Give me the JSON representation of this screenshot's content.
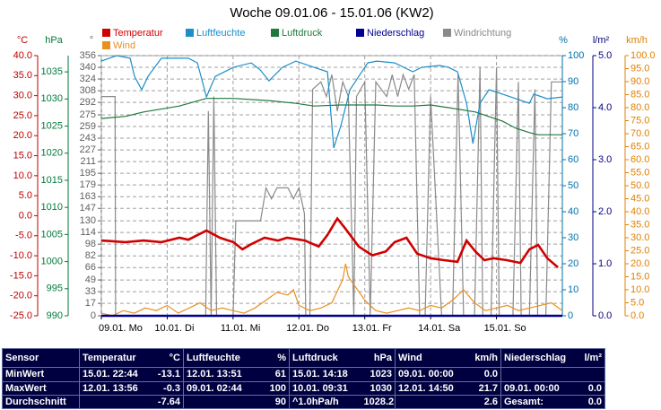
{
  "chart_data": {
    "type": "line",
    "title": "Woche 09.01.06 - 15.01.06 (KW2)",
    "grid": true,
    "xlim": [
      0,
      168
    ],
    "xticks": [
      {
        "value": 0,
        "label": "09.01. Mo"
      },
      {
        "value": 24,
        "label": "10.01. Di"
      },
      {
        "value": 48,
        "label": "11.01. Mi"
      },
      {
        "value": 72,
        "label": "12.01. Do"
      },
      {
        "value": 96,
        "label": "13.01. Fr"
      },
      {
        "value": 120,
        "label": "14.01. Sa"
      },
      {
        "value": 144,
        "label": "15.01. So"
      }
    ],
    "axes": [
      {
        "label": "°C",
        "color": "#c00000",
        "lim": [
          -25,
          40
        ],
        "ticks": [
          {
            "value": 40,
            "label": "40.0"
          },
          {
            "value": 35,
            "label": "35.0"
          },
          {
            "value": 30,
            "label": "30.0"
          },
          {
            "value": 25,
            "label": "25.0"
          },
          {
            "value": 20,
            "label": "20.0"
          },
          {
            "value": 15,
            "label": "15.0"
          },
          {
            "value": 10,
            "label": "10.0"
          },
          {
            "value": 5,
            "label": "5.0"
          },
          {
            "value": 0,
            "label": "0.0"
          },
          {
            "value": -5,
            "label": "-5.0"
          },
          {
            "value": -10,
            "label": "-10.0"
          },
          {
            "value": -15,
            "label": "-15.0"
          },
          {
            "value": -20,
            "label": "-20.0"
          },
          {
            "value": -25,
            "label": "-25.0"
          }
        ]
      },
      {
        "label": "hPa",
        "color": "#007a3a",
        "lim": [
          990,
          1038
        ],
        "ticks": [
          1035,
          1030,
          1025,
          1020,
          1015,
          1010,
          1005,
          1000,
          995,
          990
        ]
      },
      {
        "label": "°",
        "color": "#606060",
        "lim": [
          0,
          356
        ],
        "ticks": [
          356,
          340,
          324,
          308,
          292,
          275,
          259,
          243,
          227,
          211,
          195,
          179,
          163,
          147,
          130,
          114,
          98,
          82,
          66,
          49,
          33,
          17,
          0
        ]
      },
      {
        "label": "%",
        "color": "#0070a8",
        "lim": [
          0,
          100
        ],
        "ticks": [
          100,
          90,
          80,
          70,
          60,
          50,
          40,
          30,
          20,
          10,
          0
        ]
      },
      {
        "label": "l/m²",
        "color": "#000080",
        "lim": [
          0,
          5
        ],
        "ticks": [
          {
            "value": 5,
            "label": "5.0"
          },
          {
            "value": 4,
            "label": "4.0"
          },
          {
            "value": 3,
            "label": "3.0"
          },
          {
            "value": 2,
            "label": "2.0"
          },
          {
            "value": 1,
            "label": "1.0"
          },
          {
            "value": 0,
            "label": "0.0"
          }
        ]
      },
      {
        "label": "km/h",
        "color": "#e08000",
        "lim": [
          0,
          100
        ],
        "ticks": [
          {
            "value": 100,
            "label": "100.0"
          },
          {
            "value": 95,
            "label": "95.0"
          },
          {
            "value": 90,
            "label": "90.0"
          },
          {
            "value": 85,
            "label": "85.0"
          },
          {
            "value": 80,
            "label": "80.0"
          },
          {
            "value": 75,
            "label": "75.0"
          },
          {
            "value": 70,
            "label": "70.0"
          },
          {
            "value": 65,
            "label": "65.0"
          },
          {
            "value": 60,
            "label": "60.0"
          },
          {
            "value": 55,
            "label": "55.0"
          },
          {
            "value": 50,
            "label": "50.0"
          },
          {
            "value": 45,
            "label": "45.0"
          },
          {
            "value": 40,
            "label": "40.0"
          },
          {
            "value": 35,
            "label": "35.0"
          },
          {
            "value": 30,
            "label": "30.0"
          },
          {
            "value": 25,
            "label": "25.0"
          },
          {
            "value": 20,
            "label": "20.0"
          },
          {
            "value": 15,
            "label": "15.0"
          },
          {
            "value": 10,
            "label": "10.0"
          },
          {
            "value": 5,
            "label": "5.0"
          },
          {
            "value": 0,
            "label": "0.0"
          }
        ]
      }
    ],
    "series": [
      {
        "name": "Temperatur",
        "color": "#d00000",
        "axis": 0,
        "x": [
          0,
          8.8,
          15.4,
          21.9,
          28.4,
          31.7,
          38.3,
          43.2,
          48.1,
          51.4,
          54.6,
          59.5,
          64.4,
          67.7,
          74.2,
          79.2,
          82.4,
          86,
          88.9,
          93.8,
          98.7,
          103.7,
          106.9,
          111.2,
          115.1,
          120,
          124.9,
          129.8,
          133.1,
          136.3,
          139.6,
          142.9,
          147.8,
          152.7,
          156,
          159.2,
          162.5,
          166.4
        ],
        "values": [
          -6.2,
          -6.6,
          -6.2,
          -6.6,
          -5.5,
          -6,
          -3.7,
          -5.5,
          -6.6,
          -8.4,
          -7.1,
          -5.5,
          -6.2,
          -5.5,
          -6.2,
          -7.7,
          -4.8,
          -0.7,
          -3.2,
          -7.7,
          -9.9,
          -8.9,
          -6.6,
          -5.5,
          -9.5,
          -10.6,
          -11.1,
          -11.5,
          -6.2,
          -8.9,
          -11.1,
          -10.6,
          -11.1,
          -11.8,
          -8.4,
          -7.3,
          -10.6,
          -12.9
        ]
      },
      {
        "name": "Luftfeuchte",
        "color": "#1a8fc8",
        "axis": 3,
        "x": [
          0,
          5.6,
          10.5,
          12.1,
          14.7,
          17,
          21.9,
          31.7,
          35,
          38.3,
          41.5,
          48.1,
          54.6,
          57.9,
          61.1,
          66,
          70.9,
          77.5,
          82.4,
          84.7,
          87.3,
          90.6,
          93.8,
          97.1,
          100.4,
          106.9,
          113.5,
          116.7,
          123.3,
          126.5,
          129.8,
          133.1,
          135.4,
          138,
          141.3,
          146.2,
          151.1,
          156,
          157.6,
          162.5,
          168
        ],
        "values": [
          97.9,
          100,
          99,
          92,
          86.9,
          92,
          99,
          99,
          97.2,
          84.1,
          92,
          95.5,
          97.2,
          94.5,
          90.3,
          95.5,
          97.9,
          95.5,
          93.8,
          64.5,
          73.1,
          86.9,
          92,
          97.2,
          97.9,
          97.2,
          93.8,
          95.5,
          96.2,
          95.5,
          93.8,
          81.7,
          66.2,
          81.7,
          86.9,
          85.2,
          83.4,
          81.7,
          85.2,
          83.4,
          84.1
        ]
      },
      {
        "name": "Luftdruck",
        "color": "#1e7a3c",
        "axis": 1,
        "x": [
          0,
          8.8,
          15.4,
          28.4,
          38.3,
          48.1,
          61.1,
          70.9,
          77.5,
          87.3,
          100.4,
          106.9,
          113.5,
          120,
          126.5,
          136.3,
          146.2,
          151.1,
          156,
          159.2,
          168
        ],
        "values": [
          1026.4,
          1026.8,
          1027.6,
          1028.7,
          1030.1,
          1030.1,
          1029.7,
          1029.2,
          1028.7,
          1028.9,
          1028.9,
          1028.7,
          1028.7,
          1028.9,
          1028.4,
          1027.6,
          1025.9,
          1024.6,
          1023.8,
          1023.4,
          1023.4
        ]
      },
      {
        "name": "Niederschlag",
        "color": "#000090",
        "axis": 4,
        "x": [
          0,
          168
        ],
        "values": [
          0,
          0
        ]
      },
      {
        "name": "Windrichtung",
        "color": "#8a8a8a",
        "axis": 2,
        "x": [
          0,
          5,
          5.2,
          6,
          38,
          39,
          40,
          41,
          42,
          48,
          49,
          58,
          60,
          62,
          64,
          68,
          70,
          72,
          74,
          74.5,
          76,
          77,
          80,
          82,
          84,
          86,
          88,
          90,
          92,
          93,
          96,
          98,
          100,
          104,
          106,
          108,
          110,
          112,
          114,
          116,
          118,
          120,
          124,
          128,
          130,
          132,
          136,
          138,
          139,
          142,
          144,
          145,
          150,
          152,
          153,
          156,
          158,
          159,
          162,
          164,
          168
        ],
        "values": [
          300,
          300,
          0,
          0,
          0,
          280,
          0,
          300,
          0,
          0,
          130,
          130,
          175,
          160,
          175,
          175,
          160,
          175,
          140,
          0,
          0,
          310,
          320,
          300,
          330,
          280,
          320,
          300,
          0,
          300,
          320,
          0,
          320,
          300,
          330,
          300,
          330,
          310,
          330,
          0,
          0,
          300,
          0,
          0,
          330,
          0,
          0,
          340,
          0,
          0,
          340,
          0,
          0,
          320,
          0,
          0,
          310,
          0,
          0,
          320,
          320
        ]
      },
      {
        "name": "Wind",
        "color": "#e89020",
        "axis": 5,
        "x": [
          0,
          4,
          8,
          12,
          16,
          20,
          24,
          28,
          32,
          36,
          40,
          44,
          48,
          52,
          56,
          60,
          64,
          68,
          70,
          72,
          76,
          80,
          84,
          88,
          89,
          90,
          92,
          96,
          100,
          104,
          108,
          112,
          116,
          120,
          124,
          128,
          132,
          136,
          140,
          144,
          148,
          152,
          156,
          160,
          164,
          168
        ],
        "values": [
          1,
          0,
          2,
          1,
          3,
          2,
          4,
          1,
          3,
          5,
          2,
          3,
          2,
          1,
          3,
          6,
          9,
          8,
          10,
          4,
          2,
          3,
          5,
          14,
          20,
          15,
          12,
          6,
          2,
          1,
          2,
          3,
          2,
          4,
          3,
          6,
          10,
          5,
          2,
          3,
          4,
          2,
          3,
          4,
          5,
          2
        ]
      }
    ]
  },
  "stats_table": {
    "sensor": "Sensor",
    "blocks": [
      [
        "Temperatur",
        "°C"
      ],
      [
        "Luftfeuchte",
        "%"
      ],
      [
        "Luftdruck",
        "hPa"
      ],
      [
        "Wind",
        "km/h"
      ],
      [
        "Niederschlag",
        "l/m²"
      ]
    ],
    "rows": [
      {
        "label": "MinWert",
        "cells": [
          [
            "15.01. 22:44",
            "-13.1"
          ],
          [
            "12.01. 13:51",
            "61"
          ],
          [
            "15.01. 14:18",
            "1023"
          ],
          [
            "09.01. 00:00",
            "0.0"
          ],
          [
            null,
            null
          ]
        ]
      },
      {
        "label": "MaxWert",
        "cells": [
          [
            "12.01. 13:56",
            "-0.3"
          ],
          [
            "09.01. 02:44",
            "100"
          ],
          [
            "10.01. 09:31",
            "1030"
          ],
          [
            "12.01. 14:50",
            "21.7"
          ],
          [
            "09.01. 00:00",
            "0.0"
          ]
        ]
      },
      {
        "label": "Durchschnitt",
        "cells": [
          [
            null,
            "-7.64"
          ],
          [
            null,
            "90"
          ],
          [
            "^1.0hPa/h",
            "1028.2"
          ],
          [
            null,
            "2.6"
          ],
          [
            "Gesamt:",
            "0.0"
          ]
        ]
      }
    ]
  }
}
